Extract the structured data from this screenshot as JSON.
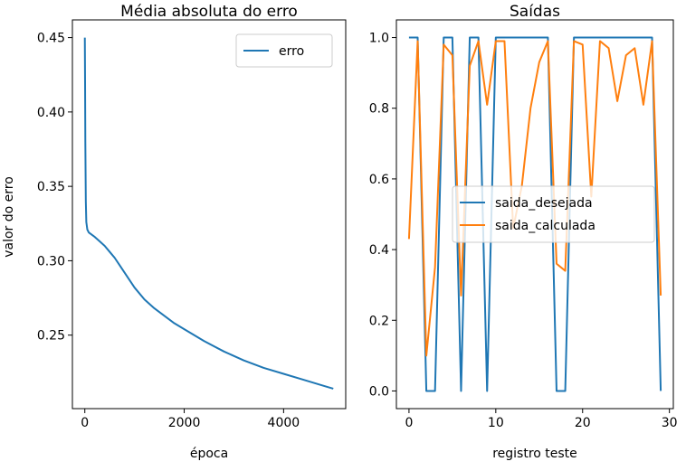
{
  "chart_data": [
    {
      "type": "line",
      "title": "Média absoluta do erro",
      "xlabel": "época",
      "ylabel": "valor do erro",
      "xlim": [
        -250,
        5250
      ],
      "ylim": [
        0.2006,
        0.4619
      ],
      "xticks": [
        0,
        2000,
        4000
      ],
      "xtick_labels": [
        "0",
        "2000",
        "4000"
      ],
      "yticks": [
        0.25,
        0.3,
        0.35,
        0.4,
        0.45
      ],
      "ytick_labels": [
        "0.25",
        "0.30",
        "0.35",
        "0.40",
        "0.45"
      ],
      "grid": false,
      "legend_position": "upper right",
      "series": [
        {
          "name": "erro",
          "color": "#1f77b4",
          "x": [
            0,
            5,
            10,
            20,
            30,
            50,
            80,
            120,
            200,
            300,
            400,
            500,
            600,
            700,
            800,
            900,
            1000,
            1200,
            1400,
            1600,
            1800,
            2000,
            2400,
            2800,
            3200,
            3600,
            4000,
            4400,
            4800,
            5000
          ],
          "y": [
            0.45,
            0.42,
            0.38,
            0.34,
            0.326,
            0.321,
            0.319,
            0.318,
            0.316,
            0.313,
            0.31,
            0.306,
            0.302,
            0.297,
            0.292,
            0.287,
            0.282,
            0.274,
            0.268,
            0.263,
            0.258,
            0.254,
            0.246,
            0.239,
            0.233,
            0.228,
            0.224,
            0.22,
            0.216,
            0.214
          ]
        }
      ]
    },
    {
      "type": "line",
      "title": "Saídas",
      "xlabel": "registro teste",
      "ylabel": "",
      "xlim": [
        -1.45,
        30.45
      ],
      "ylim": [
        -0.05,
        1.05
      ],
      "xticks": [
        0,
        10,
        20,
        30
      ],
      "xtick_labels": [
        "0",
        "10",
        "20",
        "30"
      ],
      "yticks": [
        0.0,
        0.2,
        0.4,
        0.6,
        0.8,
        1.0
      ],
      "ytick_labels": [
        "0.0",
        "0.2",
        "0.4",
        "0.6",
        "0.8",
        "1.0"
      ],
      "grid": false,
      "legend_position": "center right",
      "x": [
        0,
        1,
        2,
        3,
        4,
        5,
        6,
        7,
        8,
        9,
        10,
        11,
        12,
        13,
        14,
        15,
        16,
        17,
        18,
        19,
        20,
        21,
        22,
        23,
        24,
        25,
        26,
        27,
        28,
        29
      ],
      "series": [
        {
          "name": "saida_desejada",
          "color": "#1f77b4",
          "values": [
            1,
            1,
            0,
            0,
            1,
            1,
            0,
            1,
            1,
            0,
            1,
            1,
            1,
            1,
            1,
            1,
            1,
            0,
            0,
            1,
            1,
            1,
            1,
            1,
            1,
            1,
            1,
            1,
            1,
            0
          ]
        },
        {
          "name": "saida_calculada",
          "color": "#ff7f0e",
          "values": [
            0.43,
            0.99,
            0.1,
            0.35,
            0.98,
            0.95,
            0.27,
            0.92,
            0.99,
            0.81,
            0.99,
            0.99,
            0.46,
            0.58,
            0.8,
            0.93,
            0.99,
            0.36,
            0.34,
            0.99,
            0.98,
            0.55,
            0.99,
            0.97,
            0.82,
            0.95,
            0.97,
            0.81,
            0.99,
            0.27
          ]
        }
      ]
    }
  ]
}
